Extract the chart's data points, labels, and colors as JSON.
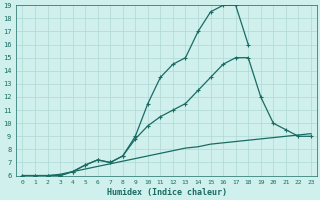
{
  "background_color": "#cff0ec",
  "grid_color": "#aed8d4",
  "line_color": "#1a6b63",
  "xlabel": "Humidex (Indice chaleur)",
  "xlim": [
    -0.5,
    23.5
  ],
  "ylim": [
    6,
    19
  ],
  "yticks": [
    6,
    7,
    8,
    9,
    10,
    11,
    12,
    13,
    14,
    15,
    16,
    17,
    18,
    19
  ],
  "xticks": [
    0,
    1,
    2,
    3,
    4,
    5,
    6,
    7,
    8,
    9,
    10,
    11,
    12,
    13,
    14,
    15,
    16,
    17,
    18,
    19,
    20,
    21,
    22,
    23
  ],
  "series": [
    {
      "x": [
        0,
        1,
        2,
        3,
        4,
        5,
        6,
        7,
        8,
        9,
        10,
        11,
        12,
        13,
        14,
        15,
        16,
        17,
        18,
        19,
        20,
        21,
        22,
        23
      ],
      "y": [
        6.0,
        6.0,
        6.0,
        6.1,
        6.3,
        6.5,
        6.7,
        6.9,
        7.1,
        7.3,
        7.5,
        7.7,
        7.9,
        8.1,
        8.2,
        8.4,
        8.5,
        8.6,
        8.7,
        8.8,
        8.9,
        9.0,
        9.1,
        9.2
      ],
      "marker": null,
      "lw": 0.9
    },
    {
      "x": [
        0,
        1,
        2,
        3,
        4,
        5,
        6,
        7,
        8,
        9,
        10,
        11,
        12,
        13,
        14,
        15,
        16,
        17,
        18,
        19,
        20,
        21,
        22,
        23
      ],
      "y": [
        6.0,
        6.0,
        6.0,
        6.0,
        6.3,
        6.8,
        7.2,
        7.0,
        7.5,
        8.8,
        9.8,
        10.5,
        11.0,
        11.5,
        12.5,
        13.5,
        14.5,
        15.0,
        15.0,
        12.0,
        10.0,
        9.5,
        9.0,
        9.0
      ],
      "marker": "+",
      "lw": 0.9
    },
    {
      "x": [
        0,
        1,
        2,
        3,
        4,
        5,
        6,
        7,
        8,
        9,
        10,
        11,
        12,
        13,
        14,
        15,
        16,
        17,
        18
      ],
      "y": [
        6.0,
        6.0,
        6.0,
        6.0,
        6.3,
        6.8,
        7.2,
        7.0,
        7.5,
        9.0,
        11.5,
        13.5,
        14.5,
        15.0,
        17.0,
        18.5,
        19.0,
        19.0,
        16.0
      ],
      "marker": "+",
      "lw": 0.9
    }
  ]
}
